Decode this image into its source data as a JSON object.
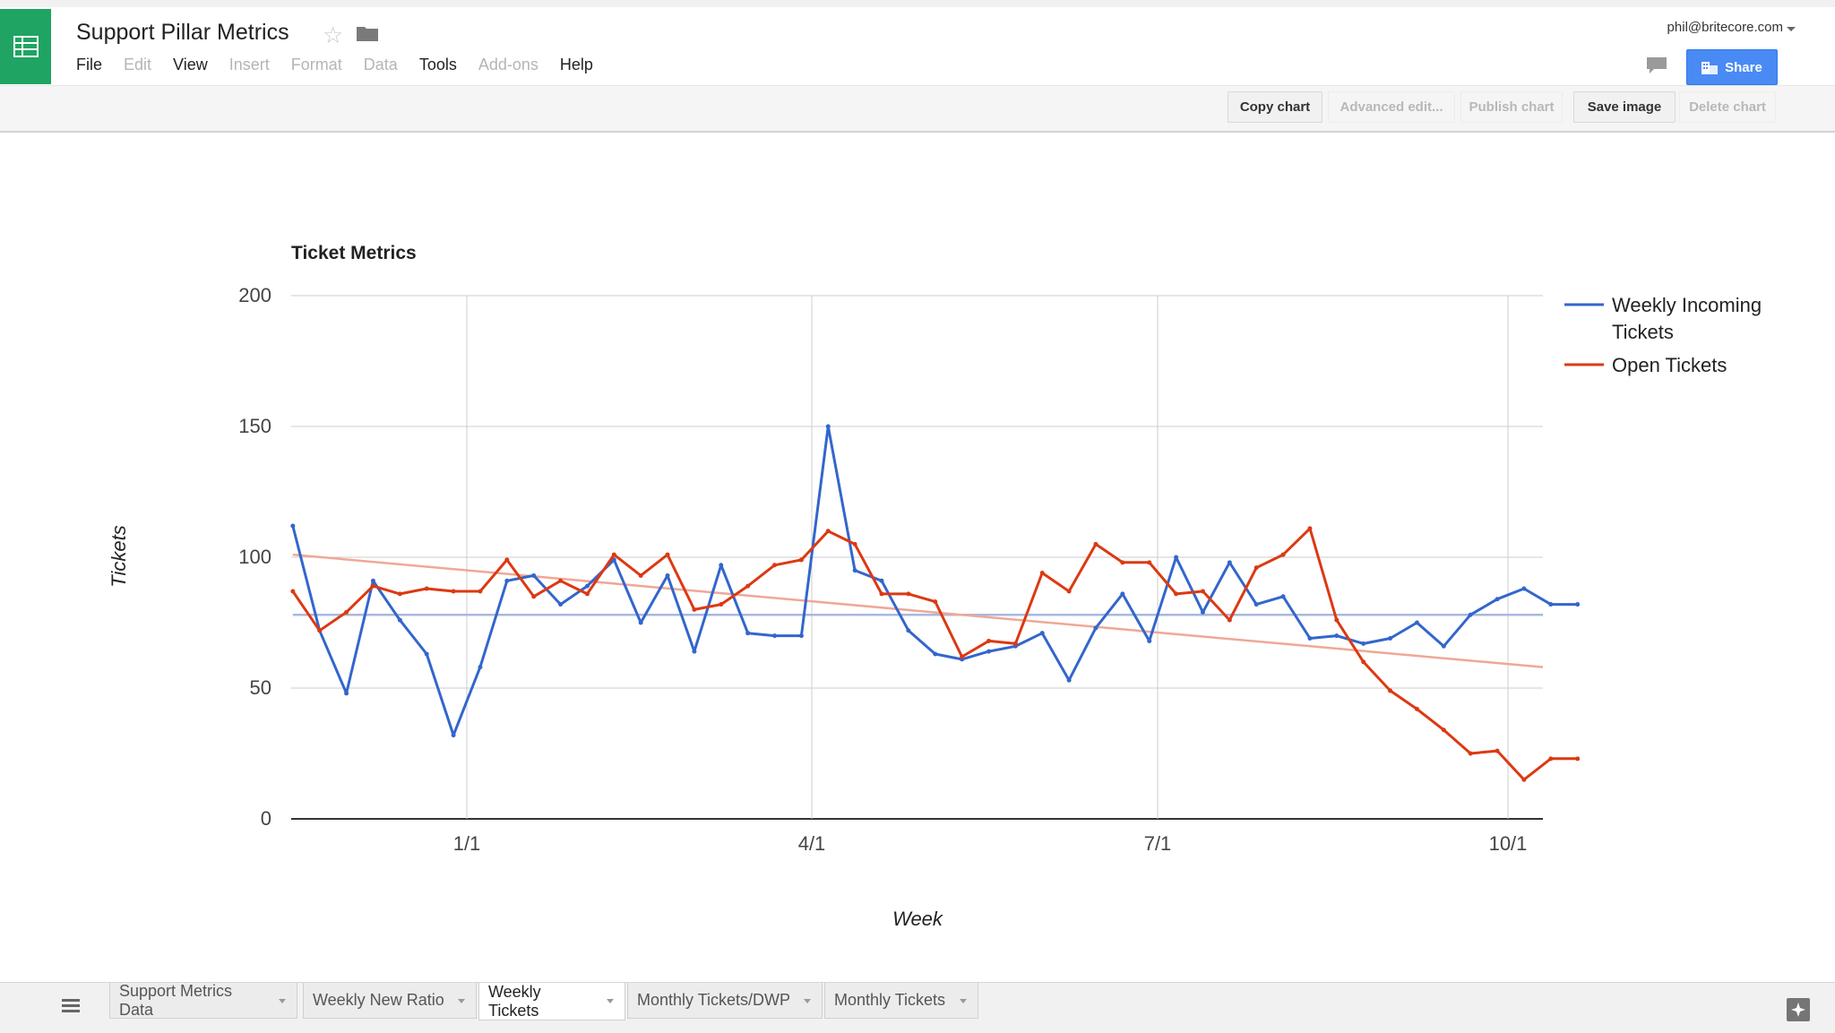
{
  "app": {
    "title": "Support Pillar Metrics",
    "user_email": "phil@britecore.com",
    "share_label": "Share",
    "icons": [
      "sheets-logo-icon",
      "star-icon",
      "folder-icon",
      "comments-icon",
      "share-icon",
      "sheets-menu-icon",
      "explore-icon"
    ]
  },
  "menu": [
    {
      "label": "File",
      "enabled": true
    },
    {
      "label": "Edit",
      "enabled": false
    },
    {
      "label": "View",
      "enabled": true
    },
    {
      "label": "Insert",
      "enabled": false
    },
    {
      "label": "Format",
      "enabled": false
    },
    {
      "label": "Data",
      "enabled": false
    },
    {
      "label": "Tools",
      "enabled": true
    },
    {
      "label": "Add-ons",
      "enabled": false
    },
    {
      "label": "Help",
      "enabled": true
    }
  ],
  "chart_toolbar": [
    {
      "label": "Copy chart",
      "enabled": true
    },
    {
      "label": "Advanced edit...",
      "enabled": false
    },
    {
      "label": "Publish chart",
      "enabled": false
    },
    {
      "label": "Save image",
      "enabled": true
    },
    {
      "label": "Delete chart",
      "enabled": false
    }
  ],
  "sheet_tabs": [
    {
      "label": "Support Metrics Data",
      "active": false
    },
    {
      "label": "Weekly New Ratio",
      "active": false
    },
    {
      "label": "Weekly Tickets",
      "active": true
    },
    {
      "label": "Monthly Tickets/DWP",
      "active": false
    },
    {
      "label": "Monthly Tickets",
      "active": false
    }
  ],
  "chart_data": {
    "type": "line",
    "title": "Ticket Metrics",
    "xlabel": "Week",
    "ylabel": "Tickets",
    "ylim": [
      0,
      200
    ],
    "yticks": [
      0,
      50,
      100,
      150,
      200
    ],
    "xticks": [
      "1/1",
      "4/1",
      "7/1",
      "10/1"
    ],
    "x_weeks_from_first_tick": [
      -6.5,
      -5.5,
      -4.5,
      -3.5,
      -2.5,
      -1.5,
      -0.5,
      0.5,
      1.5,
      2.5,
      3.5,
      4.5,
      5.5,
      6.5,
      7.5,
      8.5,
      9.5,
      10.5,
      11.5,
      12.5,
      13.5,
      14.5,
      15.5,
      16.5,
      17.5,
      18.5,
      19.5,
      20.5,
      21.5,
      22.5,
      23.5,
      24.5,
      25.5,
      26.5,
      27.5,
      28.5,
      29.5,
      30.5,
      31.5,
      32.5,
      33.5,
      34.5,
      35.5,
      36.5,
      37.5,
      38.5,
      39.5,
      40.5,
      41.5
    ],
    "tick_positions_weeks": [
      0,
      12.9,
      25.8,
      38.9
    ],
    "legend_position": "right",
    "grid": true,
    "series": [
      {
        "name": "Weekly Incoming Tickets",
        "color": "#3366cc",
        "values": [
          112,
          72,
          48,
          91,
          76,
          63,
          32,
          58,
          91,
          93,
          82,
          89,
          99,
          75,
          93,
          64,
          97,
          71,
          70,
          70,
          150,
          95,
          91,
          72,
          63,
          61,
          64,
          66,
          71,
          53,
          73,
          86,
          68,
          100,
          79,
          98,
          82,
          85,
          69,
          70,
          67,
          69,
          75,
          66,
          78,
          84,
          88,
          82,
          82
        ]
      },
      {
        "name": "Open Tickets",
        "color": "#dc3912",
        "values": [
          87,
          72,
          79,
          89,
          86,
          88,
          87,
          87,
          99,
          85,
          91,
          86,
          101,
          93,
          101,
          80,
          82,
          89,
          97,
          99,
          110,
          105,
          86,
          86,
          83,
          62,
          68,
          67,
          94,
          87,
          105,
          98,
          98,
          86,
          87,
          76,
          96,
          101,
          111,
          76,
          60,
          49,
          42,
          34,
          25,
          26,
          15,
          23,
          23
        ]
      }
    ],
    "trendlines": [
      {
        "series": "Weekly Incoming Tickets",
        "start": 78,
        "end": 78,
        "color": "#a8b8e0"
      },
      {
        "series": "Open Tickets",
        "start": 101,
        "end": 58,
        "color": "#efa896"
      }
    ]
  }
}
